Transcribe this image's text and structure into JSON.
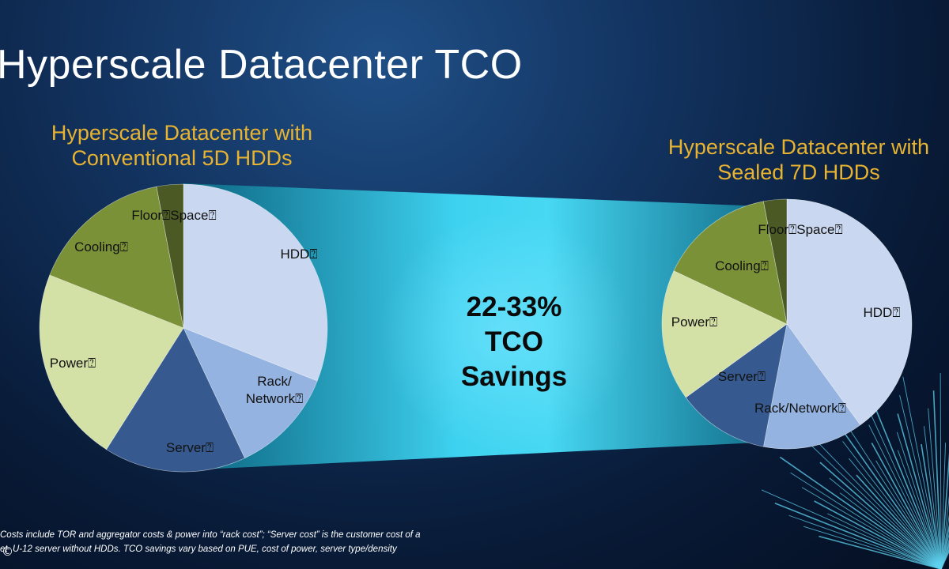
{
  "slide": {
    "title": "Hyperscale Datacenter TCO",
    "savings": {
      "line1": "22-33%",
      "line2": "TCO",
      "line3": "Savings"
    },
    "footnote": {
      "line1": "Costs include TOR and aggregator costs & power into “rack cost”; “Server cost” is the customer cost of a",
      "line2": "et  U-12 server without HDDs.  TCO savings vary based on PUE, cost of power, server type/density"
    },
    "copyright_symbol": "©"
  },
  "colors": {
    "HDD": "#c9d8f0",
    "Rack/Network": "#95b3e0",
    "Server": "#365a8f",
    "Power": "#d3e0a6",
    "Cooling": "#7b9138",
    "Floor Space": "#4b5a25",
    "title": "#ffffff",
    "subtitle": "#e8b330",
    "band": "#3ed2f0"
  },
  "chart_data": [
    {
      "type": "pie",
      "title_line1": "Hyperscale Datacenter with",
      "title_line2": "Conventional 5D HDDs",
      "slices": [
        {
          "name": "HDD",
          "value": 31,
          "label_line1": "HDD⍰",
          "label_line2": ""
        },
        {
          "name": "Rack/Network",
          "value": 12,
          "label_line1": "Rack/",
          "label_line2": "Network⍰"
        },
        {
          "name": "Server",
          "value": 16,
          "label_line1": "Server⍰",
          "label_line2": ""
        },
        {
          "name": "Power",
          "value": 22,
          "label_line1": "Power⍰",
          "label_line2": ""
        },
        {
          "name": "Cooling",
          "value": 16,
          "label_line1": "Cooling⍰",
          "label_line2": ""
        },
        {
          "name": "Floor Space",
          "value": 3,
          "label_line1": "Floor⍰Space⍰",
          "label_line2": ""
        }
      ]
    },
    {
      "type": "pie",
      "title_line1": "Hyperscale Datacenter with",
      "title_line2": "Sealed 7D HDDs",
      "slices": [
        {
          "name": "HDD",
          "value": 40,
          "label_line1": "HDD⍰",
          "label_line2": ""
        },
        {
          "name": "Rack/Network",
          "value": 13,
          "label_line1": "Rack/Network⍰",
          "label_line2": ""
        },
        {
          "name": "Server",
          "value": 12,
          "label_line1": "Server⍰",
          "label_line2": ""
        },
        {
          "name": "Power",
          "value": 17,
          "label_line1": "Power⍰",
          "label_line2": ""
        },
        {
          "name": "Cooling",
          "value": 15,
          "label_line1": "Cooling⍰",
          "label_line2": ""
        },
        {
          "name": "Floor Space",
          "value": 3,
          "label_line1": "Floor⍰Space⍰",
          "label_line2": ""
        }
      ]
    }
  ]
}
